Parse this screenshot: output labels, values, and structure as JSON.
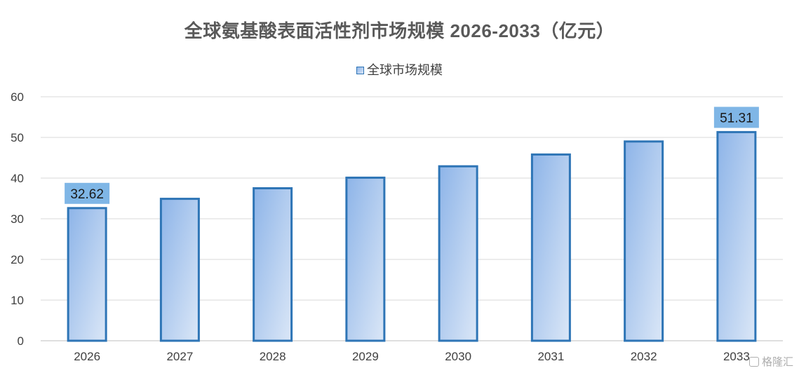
{
  "chart_data": {
    "type": "bar",
    "title": "全球氨基酸表面活性剂市场规模 2026-2033（亿元）",
    "categories": [
      "2026",
      "2027",
      "2028",
      "2029",
      "2030",
      "2031",
      "2032",
      "2033"
    ],
    "series": [
      {
        "name": "全球市场规模",
        "values": [
          32.62,
          34.9,
          37.5,
          40.1,
          42.9,
          45.8,
          49.0,
          51.31
        ]
      }
    ],
    "data_labels": [
      {
        "category": "2026",
        "text": "32.62"
      },
      {
        "category": "2033",
        "text": "51.31"
      }
    ],
    "yticks": [
      "0",
      "10",
      "20",
      "30",
      "40",
      "50",
      "60"
    ],
    "ylim": [
      0,
      60
    ],
    "xlabel": "",
    "ylabel": "",
    "grid": true,
    "legend_position": "top-center",
    "colors": {
      "bar_border": "#2e75b6",
      "bar_fill_start": "#8db4e8",
      "bar_fill_end": "#dbe7f7",
      "label_box": "#7fb6e6",
      "grid": "#d9d9d9"
    }
  },
  "watermark": {
    "text": "格隆汇",
    "icon": "gelonghui-logo-icon"
  }
}
